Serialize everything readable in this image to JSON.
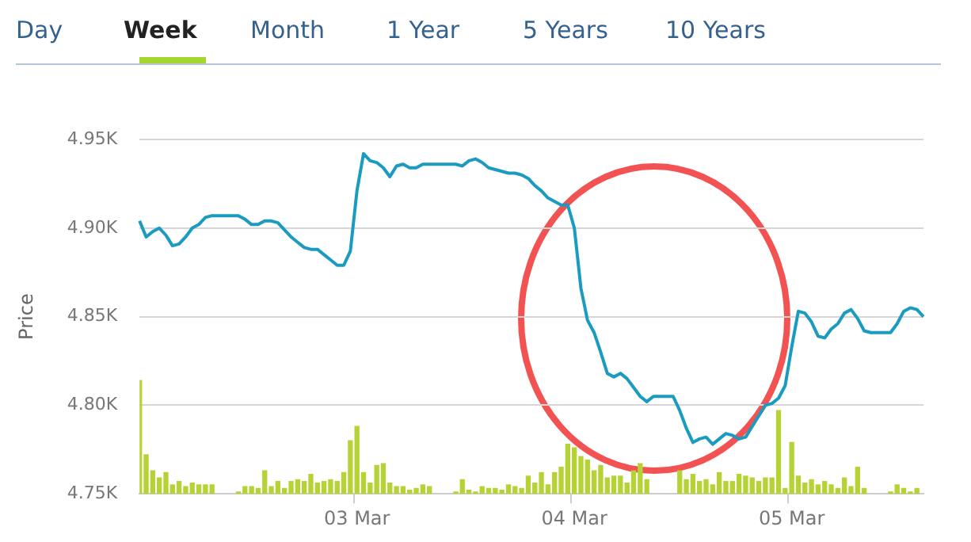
{
  "chart_data": {
    "type": "line",
    "ylabel": "Price",
    "annotations": [
      "Day",
      "Week",
      "Month",
      "1 Year",
      "5 Years",
      "10 Years"
    ],
    "categories": [
      null,
      null,
      null,
      null,
      null,
      null,
      null,
      null,
      null,
      null,
      null,
      null,
      null,
      null,
      null,
      null,
      null,
      null,
      null,
      null,
      null,
      null,
      null,
      null,
      null,
      null,
      null,
      null,
      null,
      null,
      null,
      null,
      null,
      "03 Mar",
      null,
      null,
      null,
      null,
      null,
      null,
      null,
      null,
      null,
      null,
      null,
      null,
      null,
      null,
      null,
      null,
      null,
      null,
      null,
      null,
      null,
      null,
      null,
      null,
      null,
      null,
      null,
      null,
      null,
      null,
      null,
      null,
      "04 Mar",
      null,
      null,
      null,
      null,
      null,
      null,
      null,
      null,
      null,
      null,
      null,
      null,
      null,
      null,
      null,
      null,
      null,
      null,
      null,
      null,
      null,
      null,
      null,
      null,
      null,
      null,
      null,
      null,
      null,
      null,
      null,
      null,
      "05 Mar",
      null,
      null,
      null,
      null,
      null,
      null,
      null,
      null,
      null,
      null,
      null,
      null,
      null,
      null,
      null,
      null,
      null,
      null,
      null,
      null
    ],
    "series": [
      {
        "color": "#1a9bbf",
        "values": [
          4.904,
          4.895,
          4.898,
          4.9,
          4.896,
          4.89,
          4.891,
          4.895,
          4.9,
          4.902,
          4.906,
          4.907,
          4.907,
          4.907,
          4.907,
          4.907,
          4.905,
          4.902,
          4.902,
          4.904,
          4.904,
          4.903,
          4.899,
          4.895,
          4.892,
          4.889,
          4.888,
          4.888,
          4.885,
          4.882,
          4.879,
          4.879,
          4.887,
          4.921,
          4.942,
          4.938,
          4.937,
          4.934,
          4.929,
          4.935,
          4.936,
          4.934,
          4.934,
          4.936,
          4.936,
          4.936,
          4.936,
          4.936,
          4.936,
          4.935,
          4.938,
          4.939,
          4.937,
          4.934,
          4.933,
          4.932,
          4.931,
          4.931,
          4.93,
          4.928,
          4.924,
          4.921,
          4.917,
          4.915,
          4.913,
          4.913,
          4.9,
          4.866,
          4.848,
          4.841,
          4.83,
          4.818,
          4.816,
          4.818,
          4.815,
          4.81,
          4.805,
          4.802,
          4.805,
          4.805,
          4.805,
          4.805,
          4.797,
          4.787,
          4.779,
          4.781,
          4.782,
          4.778,
          4.781,
          4.784,
          4.783,
          4.781,
          4.782,
          4.788,
          4.794,
          4.8,
          4.801,
          4.804,
          4.811,
          4.833,
          4.853,
          4.852,
          4.847,
          4.839,
          4.838,
          4.843,
          4.846,
          4.852,
          4.854,
          4.849,
          4.842,
          4.841,
          4.841,
          4.841,
          4.841,
          4.846,
          4.853,
          4.855,
          4.854,
          4.85
        ]
      },
      {
        "type": "bar",
        "color": "#b5d334",
        "values": [
          4.814,
          4.772,
          4.763,
          4.759,
          4.762,
          4.755,
          4.757,
          4.754,
          4.756,
          4.755,
          4.755,
          4.755,
          null,
          null,
          null,
          4.751,
          4.754,
          4.754,
          4.753,
          4.763,
          4.754,
          4.757,
          4.753,
          4.757,
          4.758,
          4.757,
          4.761,
          4.756,
          4.757,
          4.758,
          4.757,
          4.762,
          4.78,
          4.788,
          4.762,
          4.756,
          4.766,
          4.767,
          4.756,
          4.754,
          4.754,
          4.752,
          4.753,
          4.755,
          4.754,
          null,
          null,
          null,
          4.751,
          4.758,
          4.752,
          4.751,
          4.754,
          4.753,
          4.753,
          4.752,
          4.755,
          4.754,
          4.753,
          4.76,
          4.756,
          4.762,
          4.755,
          4.762,
          4.765,
          4.778,
          4.776,
          4.771,
          4.769,
          4.763,
          4.766,
          4.759,
          4.76,
          4.76,
          4.756,
          4.763,
          4.767,
          4.758,
          null,
          null,
          null,
          null,
          4.763,
          4.758,
          4.761,
          4.757,
          4.758,
          4.755,
          4.762,
          4.757,
          4.757,
          4.761,
          4.76,
          4.759,
          4.757,
          4.759,
          4.759,
          4.797,
          4.753,
          4.779,
          4.76,
          4.756,
          4.758,
          4.755,
          4.757,
          4.755,
          4.753,
          4.759,
          4.754,
          4.765,
          4.753,
          null,
          null,
          null,
          4.751,
          4.755,
          4.753,
          4.751,
          4.753,
          null
        ]
      }
    ],
    "ylim": [
      4.75,
      4.95
    ],
    "yticks": [
      {
        "value": 4.75,
        "label": "4.75K"
      },
      {
        "value": 4.8,
        "label": "4.80K"
      },
      {
        "value": 4.85,
        "label": "4.85K"
      },
      {
        "value": 4.9,
        "label": "4.90K"
      },
      {
        "value": 4.95,
        "label": "4.95K"
      }
    ],
    "grid": "y",
    "marker": "none",
    "line_style": "solid"
  }
}
